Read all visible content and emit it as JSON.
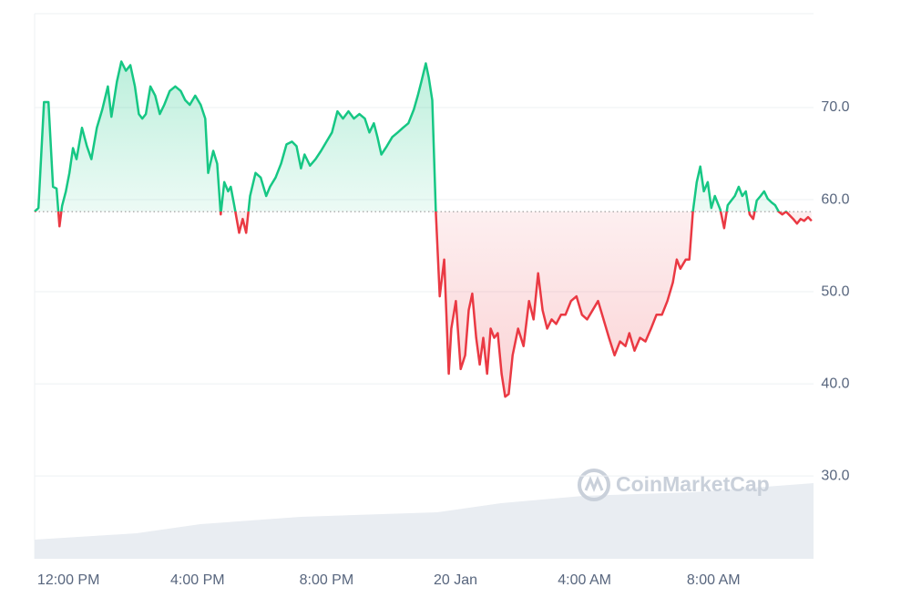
{
  "chart_data": {
    "type": "baseline-line",
    "watermark": "CoinMarketCap",
    "baseline": 58.7,
    "up_color": "#16c784",
    "down_color": "#ea3943",
    "xlim": [
      -1.05,
      23.1
    ],
    "xticks": [
      {
        "value": 0,
        "label": "12:00 PM"
      },
      {
        "value": 4,
        "label": "4:00 PM"
      },
      {
        "value": 8,
        "label": "8:00 PM"
      },
      {
        "value": 12,
        "label": "20 Jan"
      },
      {
        "value": 16,
        "label": "4:00 AM"
      },
      {
        "value": 20,
        "label": "8:00 AM"
      }
    ],
    "ylim": [
      21,
      80
    ],
    "yticks": [
      {
        "value": 30,
        "label": "30.0"
      },
      {
        "value": 40,
        "label": "40.0"
      },
      {
        "value": 50,
        "label": "50.0"
      },
      {
        "value": 60,
        "label": "60.0"
      },
      {
        "value": 70,
        "label": "70.0"
      }
    ],
    "grid": true,
    "x": [
      -1.05,
      -0.93,
      -0.76,
      -0.62,
      -0.48,
      -0.37,
      -0.28,
      -0.2,
      -0.08,
      0.03,
      0.14,
      0.25,
      0.42,
      0.57,
      0.71,
      0.88,
      1.05,
      1.22,
      1.33,
      1.5,
      1.64,
      1.78,
      1.92,
      2.06,
      2.18,
      2.29,
      2.4,
      2.54,
      2.69,
      2.83,
      2.97,
      3.14,
      3.31,
      3.48,
      3.62,
      3.76,
      3.93,
      4.1,
      4.24,
      4.33,
      4.49,
      4.61,
      4.72,
      4.83,
      4.95,
      5.03,
      5.14,
      5.29,
      5.4,
      5.51,
      5.63,
      5.8,
      5.96,
      6.13,
      6.25,
      6.42,
      6.59,
      6.76,
      6.93,
      7.07,
      7.21,
      7.32,
      7.49,
      7.66,
      7.83,
      8.0,
      8.17,
      8.34,
      8.51,
      8.68,
      8.85,
      9.02,
      9.19,
      9.33,
      9.47,
      9.58,
      9.7,
      9.87,
      10.04,
      10.21,
      10.37,
      10.54,
      10.71,
      10.83,
      10.94,
      11.08,
      11.17,
      11.28,
      11.39,
      11.51,
      11.65,
      11.79,
      11.87,
      12.01,
      12.16,
      12.3,
      12.41,
      12.52,
      12.64,
      12.75,
      12.86,
      12.98,
      13.09,
      13.2,
      13.31,
      13.43,
      13.54,
      13.65,
      13.77,
      13.94,
      14.11,
      14.28,
      14.42,
      14.56,
      14.7,
      14.84,
      14.98,
      15.12,
      15.27,
      15.41,
      15.58,
      15.75,
      15.92,
      16.08,
      16.25,
      16.42,
      16.59,
      16.76,
      16.93,
      17.1,
      17.27,
      17.39,
      17.55,
      17.72,
      17.89,
      18.06,
      18.23,
      18.4,
      18.57,
      18.74,
      18.86,
      18.97,
      19.14,
      19.25,
      19.36,
      19.48,
      19.59,
      19.7,
      19.82,
      19.93,
      20.04,
      20.21,
      20.33,
      20.44,
      20.55,
      20.66,
      20.78,
      20.89,
      21.0,
      21.12,
      21.23,
      21.34,
      21.46,
      21.57,
      21.68,
      21.8,
      21.91,
      22.02,
      22.13,
      22.25,
      22.36,
      22.47,
      22.59,
      22.7,
      22.81,
      22.93,
      23.04
    ],
    "values": [
      58.7,
      59.1,
      70.6,
      70.6,
      61.4,
      61.2,
      57.1,
      59.3,
      60.9,
      62.9,
      65.6,
      64.4,
      67.8,
      65.8,
      64.4,
      67.8,
      69.8,
      72.3,
      69.0,
      72.8,
      75.0,
      74.0,
      74.6,
      72.3,
      69.3,
      68.8,
      69.3,
      72.3,
      71.3,
      69.3,
      70.3,
      71.8,
      72.3,
      71.8,
      70.8,
      70.3,
      71.3,
      70.3,
      68.8,
      62.9,
      65.3,
      63.9,
      58.4,
      61.9,
      60.9,
      61.4,
      59.4,
      56.4,
      57.9,
      56.4,
      60.4,
      62.9,
      62.4,
      60.4,
      61.4,
      62.4,
      63.9,
      66.0,
      66.3,
      65.8,
      63.4,
      64.9,
      63.7,
      64.4,
      65.3,
      66.3,
      67.3,
      69.6,
      68.8,
      69.6,
      68.8,
      69.3,
      68.8,
      67.3,
      68.3,
      66.8,
      64.9,
      65.8,
      66.8,
      67.3,
      67.8,
      68.3,
      69.8,
      71.3,
      72.8,
      74.8,
      73.3,
      70.8,
      58.7,
      49.5,
      53.5,
      41.1,
      46.0,
      49.0,
      41.6,
      43.1,
      48.0,
      49.8,
      45.0,
      42.1,
      45.0,
      41.1,
      46.0,
      45.0,
      45.5,
      41.1,
      38.6,
      38.9,
      43.1,
      46.0,
      44.1,
      49.0,
      47.0,
      52.0,
      48.0,
      46.0,
      47.0,
      46.5,
      47.5,
      47.5,
      49.0,
      49.5,
      47.5,
      47.0,
      48.0,
      49.0,
      47.0,
      45.0,
      43.1,
      44.6,
      44.1,
      45.5,
      43.6,
      45.0,
      44.6,
      46.0,
      47.5,
      47.5,
      49.0,
      51.0,
      53.5,
      52.5,
      53.5,
      53.5,
      58.7,
      61.9,
      63.6,
      60.9,
      61.9,
      59.1,
      60.4,
      58.9,
      56.9,
      59.4,
      59.9,
      60.4,
      61.4,
      60.4,
      60.9,
      58.4,
      57.9,
      59.9,
      60.4,
      60.9,
      60.1,
      59.7,
      59.4,
      58.7,
      58.4,
      58.7,
      58.3,
      57.9,
      57.4,
      57.9,
      57.7,
      58.1,
      57.7
    ]
  }
}
